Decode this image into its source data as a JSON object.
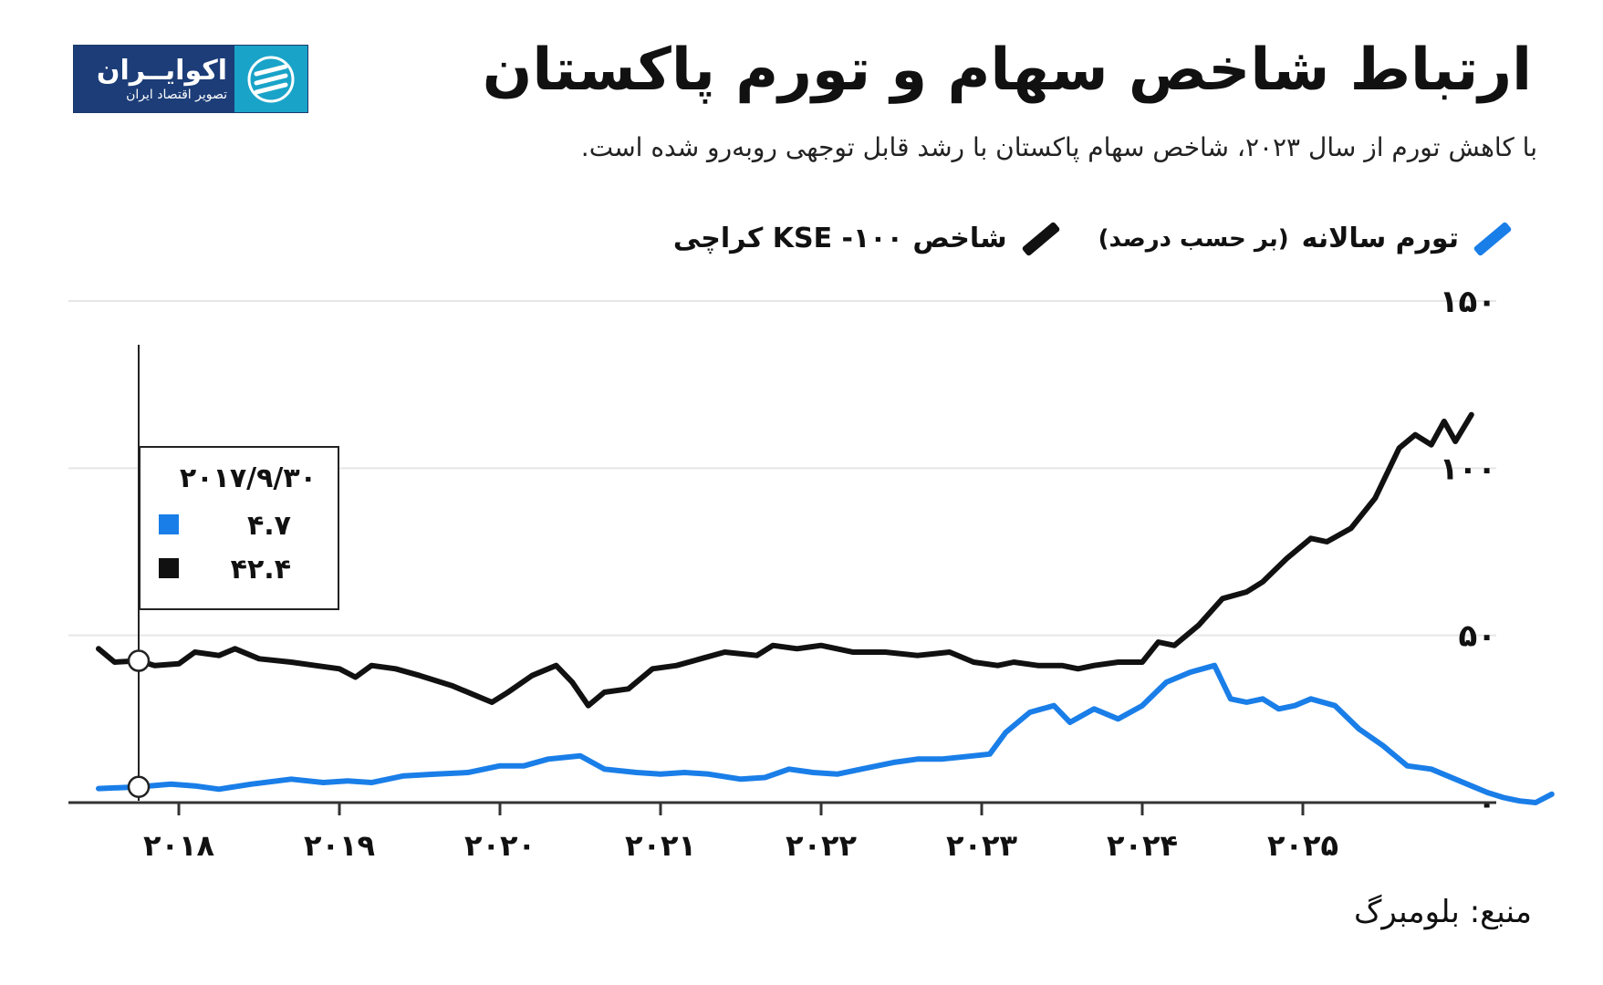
{
  "header": {
    "title": "ارتباط شاخص سهام و تورم پاکستان",
    "subtitle": "با کاهش تورم از سال ۲۰۲۳، شاخص سهام پاکستان با رشد قابل توجهی روبه‌رو شده است."
  },
  "logo": {
    "name": "اکوایــران",
    "tagline": "تصویر اقتصاد ایران",
    "brand_color": "#1c3d78",
    "accent_color": "#1aa3c8"
  },
  "legend": {
    "inflation_label": "تورم سالانه",
    "inflation_unit": "(بر حسب درصد)",
    "index_label": "شاخص KSE -۱۰۰ کراچی"
  },
  "source": "منبع: بلومبرگ",
  "colors": {
    "inflation": "#1a7ee8",
    "index": "#111111",
    "grid": "#e6e6e6"
  },
  "chart_data": {
    "type": "line",
    "ylim": [
      0,
      150
    ],
    "yticks": [
      0,
      50,
      100,
      150
    ],
    "ytick_labels": [
      "۰",
      "۵۰",
      "۱۰۰",
      "۱۵۰"
    ],
    "xlim": [
      2017.3,
      2026.2
    ],
    "xticks": [
      2018,
      2019,
      2020,
      2021,
      2022,
      2023,
      2024,
      2025
    ],
    "xtick_labels": [
      "۲۰۱۸",
      "۲۰۱۹",
      "۲۰۲۰",
      "۲۰۲۱",
      "۲۰۲۲",
      "۲۰۲۳",
      "۲۰۲۴",
      "۲۰۲۵"
    ],
    "series": [
      {
        "name": "KSE-100",
        "points": [
          [
            2017.5,
            46
          ],
          [
            2017.6,
            42
          ],
          [
            2017.75,
            42.4
          ],
          [
            2017.85,
            41
          ],
          [
            2018.0,
            41.5
          ],
          [
            2018.1,
            45
          ],
          [
            2018.25,
            44
          ],
          [
            2018.35,
            46
          ],
          [
            2018.5,
            43
          ],
          [
            2018.7,
            42
          ],
          [
            2018.85,
            41
          ],
          [
            2019.0,
            40
          ],
          [
            2019.1,
            37.5
          ],
          [
            2019.2,
            41
          ],
          [
            2019.35,
            40
          ],
          [
            2019.5,
            38
          ],
          [
            2019.7,
            35
          ],
          [
            2019.85,
            32
          ],
          [
            2019.95,
            30
          ],
          [
            2020.05,
            33
          ],
          [
            2020.2,
            38
          ],
          [
            2020.35,
            41
          ],
          [
            2020.45,
            36
          ],
          [
            2020.55,
            29
          ],
          [
            2020.65,
            33
          ],
          [
            2020.8,
            34
          ],
          [
            2020.95,
            40
          ],
          [
            2021.1,
            41
          ],
          [
            2021.25,
            43
          ],
          [
            2021.4,
            45
          ],
          [
            2021.6,
            44
          ],
          [
            2021.7,
            47
          ],
          [
            2021.85,
            46
          ],
          [
            2022.0,
            47
          ],
          [
            2022.2,
            45
          ],
          [
            2022.4,
            45
          ],
          [
            2022.6,
            44
          ],
          [
            2022.8,
            45
          ],
          [
            2022.95,
            42
          ],
          [
            2023.1,
            41
          ],
          [
            2023.2,
            42
          ],
          [
            2023.35,
            41
          ],
          [
            2023.5,
            41
          ],
          [
            2023.6,
            40
          ],
          [
            2023.7,
            41
          ],
          [
            2023.85,
            42
          ],
          [
            2024.0,
            42
          ],
          [
            2024.1,
            48
          ],
          [
            2024.2,
            47
          ],
          [
            2024.35,
            53
          ],
          [
            2024.5,
            61
          ],
          [
            2024.65,
            63
          ],
          [
            2024.75,
            66
          ],
          [
            2024.9,
            73
          ],
          [
            2025.05,
            79
          ],
          [
            2025.15,
            78
          ],
          [
            2025.3,
            82
          ],
          [
            2025.45,
            91
          ],
          [
            2025.6,
            106
          ],
          [
            2025.7,
            110
          ],
          [
            2025.8,
            107
          ],
          [
            2025.88,
            114
          ],
          [
            2025.95,
            108
          ],
          [
            2026.05,
            116
          ]
        ]
      },
      {
        "name": "تورم سالانه",
        "points": [
          [
            2017.5,
            4.2
          ],
          [
            2017.75,
            4.7
          ],
          [
            2017.95,
            5.5
          ],
          [
            2018.1,
            5
          ],
          [
            2018.25,
            4
          ],
          [
            2018.45,
            5.5
          ],
          [
            2018.7,
            7
          ],
          [
            2018.9,
            6
          ],
          [
            2019.05,
            6.5
          ],
          [
            2019.2,
            6
          ],
          [
            2019.4,
            8
          ],
          [
            2019.6,
            8.5
          ],
          [
            2019.8,
            9
          ],
          [
            2020.0,
            11
          ],
          [
            2020.15,
            11
          ],
          [
            2020.3,
            13
          ],
          [
            2020.5,
            14
          ],
          [
            2020.65,
            10
          ],
          [
            2020.85,
            9
          ],
          [
            2021.0,
            8.5
          ],
          [
            2021.15,
            9
          ],
          [
            2021.3,
            8.5
          ],
          [
            2021.5,
            7
          ],
          [
            2021.65,
            7.5
          ],
          [
            2021.8,
            10
          ],
          [
            2021.95,
            9
          ],
          [
            2022.1,
            8.5
          ],
          [
            2022.25,
            10
          ],
          [
            2022.45,
            12
          ],
          [
            2022.6,
            13
          ],
          [
            2022.75,
            13
          ],
          [
            2022.95,
            14
          ],
          [
            2023.05,
            14.5
          ],
          [
            2023.15,
            21
          ],
          [
            2023.3,
            27
          ],
          [
            2023.45,
            29
          ],
          [
            2023.55,
            24
          ],
          [
            2023.7,
            28
          ],
          [
            2023.85,
            25
          ],
          [
            2024.0,
            29
          ],
          [
            2024.15,
            36
          ],
          [
            2024.3,
            39
          ],
          [
            2024.45,
            41
          ],
          [
            2024.55,
            31
          ],
          [
            2024.65,
            30
          ],
          [
            2024.75,
            31
          ],
          [
            2024.85,
            28
          ],
          [
            2024.95,
            29
          ],
          [
            2025.05,
            31
          ],
          [
            2025.2,
            29
          ],
          [
            2025.35,
            22
          ],
          [
            2025.5,
            17
          ],
          [
            2025.65,
            11
          ],
          [
            2025.8,
            10
          ],
          [
            2025.95,
            7
          ],
          [
            2026.05,
            5
          ],
          [
            2026.15,
            3
          ],
          [
            2026.25,
            1.5
          ],
          [
            2026.35,
            0.5
          ],
          [
            2026.45,
            0
          ],
          [
            2026.55,
            2.5
          ]
        ]
      }
    ],
    "tooltip": {
      "date": "۲۰۱۷/۹/۳۰",
      "x": 2017.75,
      "inflation_value": "۴.۷",
      "index_value": "۴۲.۴"
    }
  }
}
